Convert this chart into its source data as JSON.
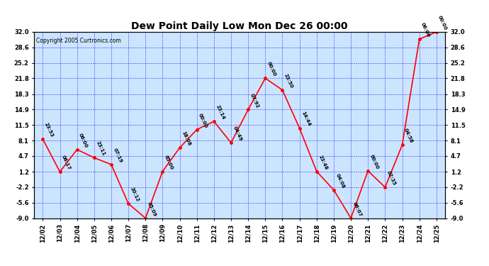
{
  "title": "Dew Point Daily Low Mon Dec 26 00:00",
  "copyright": "Copyright 2005 Curtronics.com",
  "x_labels": [
    "12/02",
    "12/03",
    "12/04",
    "12/05",
    "12/06",
    "12/07",
    "12/08",
    "12/09",
    "12/10",
    "12/11",
    "12/12",
    "12/13",
    "12/14",
    "12/15",
    "12/16",
    "12/17",
    "12/18",
    "12/19",
    "12/20",
    "12/21",
    "12/22",
    "12/23",
    "12/24",
    "12/25"
  ],
  "y_values": [
    8.4,
    1.2,
    6.1,
    4.3,
    2.8,
    -5.8,
    -9.0,
    1.3,
    6.5,
    10.5,
    12.3,
    7.6,
    14.9,
    21.8,
    19.2,
    10.8,
    1.3,
    -2.8,
    -9.0,
    1.4,
    -2.2,
    7.1,
    30.4,
    32.0
  ],
  "annotations": [
    "23:53",
    "06:17",
    "06:00",
    "23:11",
    "07:19",
    "20:12",
    "05:09",
    "65:00",
    "18:08",
    "00:00",
    "23:14",
    "04:49",
    "07:92",
    "00:00",
    "23:50",
    "14:44",
    "23:48",
    "04:08",
    "06:07",
    "00:00",
    "02:35",
    "04:58",
    "06:00",
    "00:00"
  ],
  "ylim": [
    -9.0,
    32.0
  ],
  "yticks": [
    -9.0,
    -5.6,
    -2.2,
    1.2,
    4.7,
    8.1,
    11.5,
    14.9,
    18.3,
    21.8,
    25.2,
    28.6,
    32.0
  ],
  "line_color": "red",
  "marker_color": "red",
  "bg_color": "#cce5ff",
  "grid_color": "blue",
  "border_color": "black",
  "title_fontsize": 10,
  "tick_fontsize": 6,
  "annot_fontsize": 5
}
